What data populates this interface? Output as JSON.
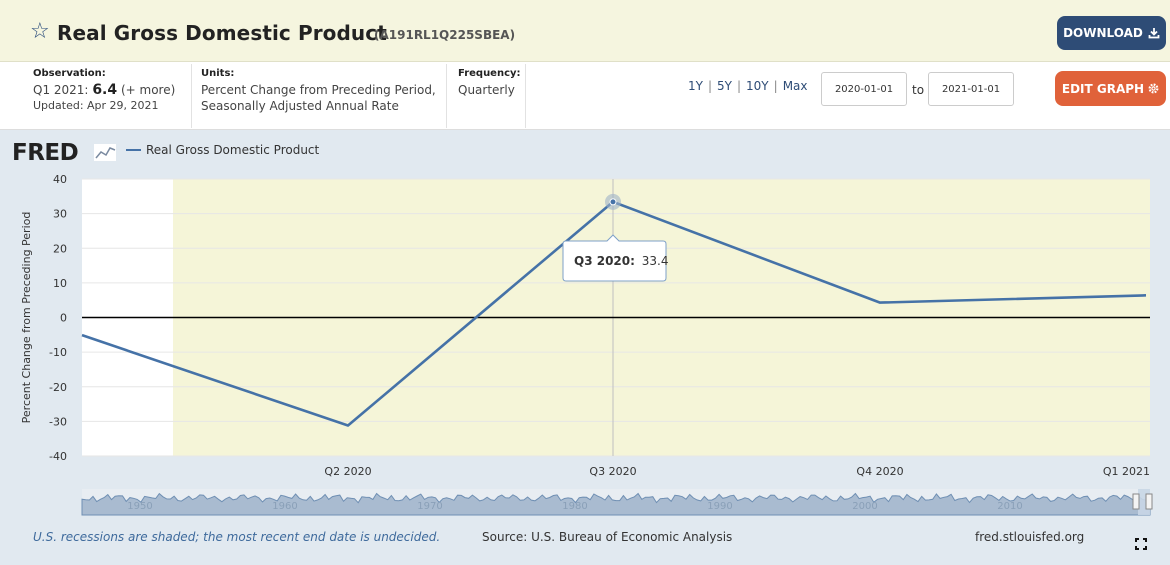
{
  "header": {
    "title": "Real Gross Domestic Product",
    "series_id": "(A191RL1Q225SBEA)",
    "download_label": "DOWNLOAD"
  },
  "info": {
    "observation_label": "Observation:",
    "observation_period": "Q1 2021:",
    "observation_value": "6.4",
    "observation_more": "(+ more)",
    "updated": "Updated: Apr 29, 2021",
    "units_label": "Units:",
    "units_line1": "Percent Change from Preceding Period,",
    "units_line2": "Seasonally Adjusted Annual Rate",
    "frequency_label": "Frequency:",
    "frequency_value": "Quarterly"
  },
  "controls": {
    "range_1y": "1Y",
    "range_5y": "5Y",
    "range_10y": "10Y",
    "range_max": "Max",
    "date_from": "2020-01-01",
    "to_label": "to",
    "date_to": "2021-01-01",
    "edit_label": "EDIT GRAPH"
  },
  "chart_data": {
    "type": "line",
    "logo": "FRED",
    "legend": "Real Gross Domestic Product",
    "ylabel": "Percent Change from Preceding Period",
    "ylim": [
      -40,
      40
    ],
    "yticks": [
      40,
      30,
      20,
      10,
      0,
      -10,
      -20,
      -30,
      -40
    ],
    "xlabels": [
      "Q2 2020",
      "Q3 2020",
      "Q4 2020",
      "Q1 2021"
    ],
    "series": [
      {
        "name": "Real Gross Domestic Product",
        "color": "#4572a7",
        "x": [
          "Q1 2020",
          "Q2 2020",
          "Q3 2020",
          "Q4 2020",
          "Q1 2021"
        ],
        "values": [
          -5.1,
          -31.2,
          33.4,
          4.3,
          6.4
        ]
      }
    ],
    "recession_shading": {
      "from": "Feb 2020",
      "to": "Q1 2021",
      "color": "#f5f5d8"
    },
    "tooltip": {
      "label": "Q3 2020:",
      "value": "33.4"
    },
    "navigator_labels": [
      "1950",
      "1960",
      "1970",
      "1980",
      "1990",
      "2000",
      "2010"
    ]
  },
  "footer": {
    "note": "U.S. recessions are shaded; the most recent end date is undecided.",
    "source": "Source: U.S. Bureau of Economic Analysis",
    "site": "fred.stlouisfed.org"
  }
}
